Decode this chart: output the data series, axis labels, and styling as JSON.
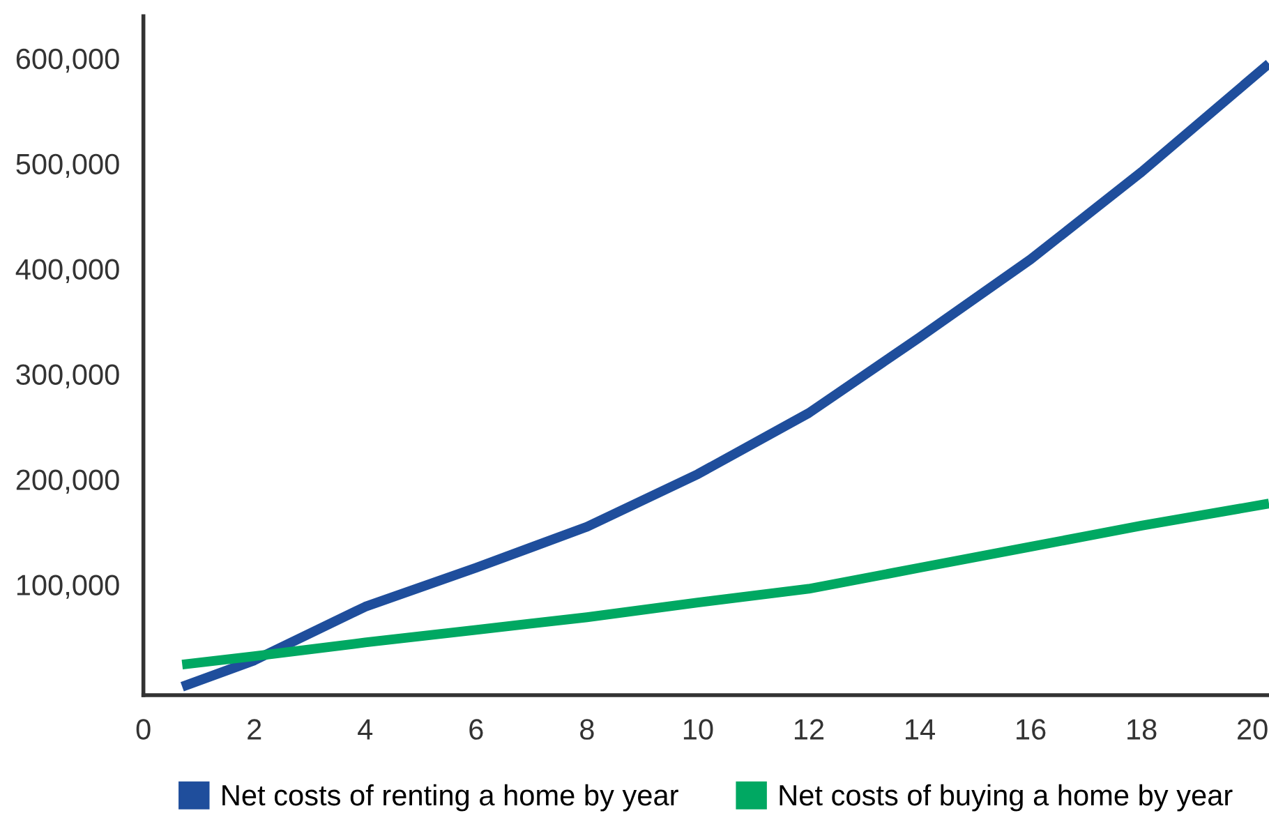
{
  "chart_data": {
    "type": "line",
    "x": [
      0.7,
      2,
      4,
      6,
      8,
      10,
      12,
      14,
      16,
      18,
      20.3
    ],
    "series": [
      {
        "name": "Net costs of renting a home by year",
        "color": "#1f4e9c",
        "values": [
          3000,
          28000,
          79000,
          116000,
          155000,
          205000,
          263000,
          335000,
          409000,
          492000,
          595000
        ]
      },
      {
        "name": "Net costs of buying a home by year",
        "color": "#00a862",
        "values": [
          24000,
          32000,
          45000,
          57000,
          69000,
          83000,
          96000,
          116000,
          136000,
          156000,
          177000
        ]
      }
    ],
    "xlim": [
      0,
      20.3
    ],
    "xticks": [
      0,
      2,
      4,
      6,
      8,
      10,
      12,
      14,
      16,
      18,
      20
    ],
    "ylim": [
      -5000,
      640000
    ],
    "yticks": [
      {
        "value": 100000,
        "label": "100,000"
      },
      {
        "value": 200000,
        "label": "200,000"
      },
      {
        "value": 300000,
        "label": "300,000"
      },
      {
        "value": 400000,
        "label": "400,000"
      },
      {
        "value": 500000,
        "label": "500,000"
      },
      {
        "value": 600000,
        "label": "600,000"
      }
    ],
    "grid": false,
    "legend": "bottom",
    "marker": "none",
    "line_style": "solid"
  }
}
